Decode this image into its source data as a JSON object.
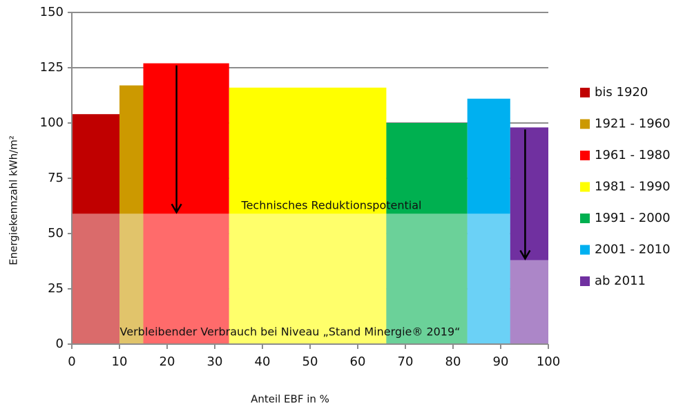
{
  "chart_data": {
    "type": "mekko",
    "categories": [
      "bis 1920",
      "1921 - 1960",
      "1961 - 1980",
      "1981 - 1990",
      "1991 - 2000",
      "2001 - 2010",
      "ab 2011"
    ],
    "colors": [
      "#c00000",
      "#cc9900",
      "#ff0000",
      "#ffff00",
      "#00b050",
      "#00b0f0",
      "#7030a0"
    ],
    "edges": [
      0,
      10,
      15,
      33,
      66,
      83,
      92,
      100
    ],
    "values": [
      104,
      117,
      127,
      116,
      100,
      111,
      98
    ],
    "remaining": [
      59,
      59,
      59,
      59,
      59,
      59,
      38
    ],
    "xlabel": "Anteil EBF in %",
    "ylabel": "Energiekennzahl kWh/m²",
    "annotations": [
      "Technisches Reduktionspotential",
      "Verbleibender Verbrauch bei Niveau „Stand Minergie® 2019“"
    ],
    "xlim": [
      0,
      100
    ],
    "xticks": [
      0,
      10,
      20,
      30,
      40,
      50,
      60,
      70,
      80,
      90,
      100
    ],
    "ylim": [
      0,
      150
    ],
    "yticks": [
      0,
      25,
      50,
      75,
      100,
      125,
      150
    ],
    "grid": true,
    "legend": "right"
  }
}
